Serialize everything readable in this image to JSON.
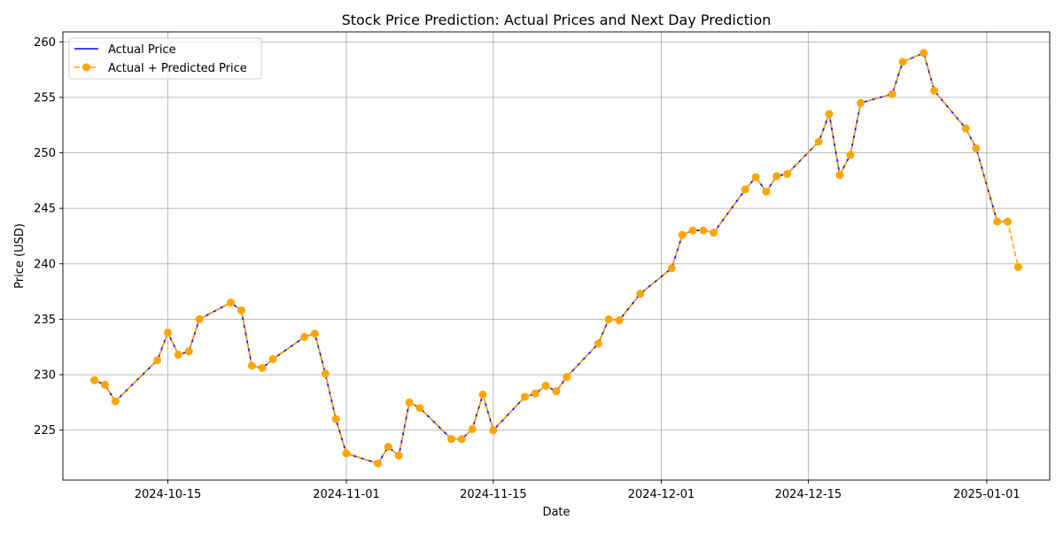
{
  "chart_data": {
    "type": "line",
    "title": "Stock Price Prediction: Actual Prices and Next Day Prediction",
    "xlabel": "Date",
    "ylabel": "Price (USD)",
    "xlim": [
      "2024-10-05",
      "2025-01-07"
    ],
    "ylim": [
      220.5,
      260.9
    ],
    "x_ticks": [
      "2024-10-15",
      "2024-11-01",
      "2024-11-15",
      "2024-12-01",
      "2024-12-15",
      "2025-01-01"
    ],
    "y_ticks": [
      225,
      230,
      235,
      240,
      245,
      250,
      255,
      260
    ],
    "grid": true,
    "legend_position": "top-left",
    "colors": {
      "actual": "#0000ff",
      "predicted": "#ffa500"
    },
    "series": [
      {
        "name": "Actual Price",
        "style": "solid",
        "x": [
          "2024-10-08",
          "2024-10-09",
          "2024-10-10",
          "2024-10-14",
          "2024-10-15",
          "2024-10-16",
          "2024-10-17",
          "2024-10-18",
          "2024-10-21",
          "2024-10-22",
          "2024-10-23",
          "2024-10-24",
          "2024-10-25",
          "2024-10-28",
          "2024-10-29",
          "2024-10-30",
          "2024-10-31",
          "2024-11-01",
          "2024-11-04",
          "2024-11-05",
          "2024-11-06",
          "2024-11-07",
          "2024-11-08",
          "2024-11-11",
          "2024-11-12",
          "2024-11-13",
          "2024-11-14",
          "2024-11-15",
          "2024-11-18",
          "2024-11-19",
          "2024-11-20",
          "2024-11-21",
          "2024-11-22",
          "2024-11-25",
          "2024-11-26",
          "2024-11-27",
          "2024-11-29",
          "2024-12-02",
          "2024-12-03",
          "2024-12-04",
          "2024-12-05",
          "2024-12-06",
          "2024-12-09",
          "2024-12-10",
          "2024-12-11",
          "2024-12-12",
          "2024-12-13",
          "2024-12-16",
          "2024-12-17",
          "2024-12-18",
          "2024-12-19",
          "2024-12-20",
          "2024-12-23",
          "2024-12-24",
          "2024-12-26",
          "2024-12-27",
          "2024-12-30",
          "2024-12-31",
          "2025-01-02",
          "2025-01-03"
        ],
        "values": [
          229.5,
          229.1,
          227.6,
          231.3,
          233.8,
          231.8,
          232.1,
          235.0,
          236.5,
          235.8,
          230.8,
          230.6,
          231.4,
          233.4,
          233.7,
          230.1,
          226.0,
          222.9,
          222.0,
          223.5,
          222.7,
          227.5,
          227.0,
          224.2,
          224.2,
          225.1,
          228.2,
          225.0,
          228.0,
          228.3,
          229.0,
          228.5,
          229.8,
          232.8,
          235.0,
          234.9,
          237.3,
          239.6,
          242.6,
          243.0,
          243.0,
          242.8,
          246.7,
          247.8,
          246.5,
          247.9,
          248.1,
          251.0,
          253.5,
          248.0,
          249.8,
          254.5,
          255.3,
          258.2,
          259.0,
          255.6,
          252.2,
          250.4,
          243.8,
          243.8
        ]
      },
      {
        "name": "Actual + Predicted Price",
        "style": "dashed-markers",
        "x": [
          "2024-10-08",
          "2024-10-09",
          "2024-10-10",
          "2024-10-14",
          "2024-10-15",
          "2024-10-16",
          "2024-10-17",
          "2024-10-18",
          "2024-10-21",
          "2024-10-22",
          "2024-10-23",
          "2024-10-24",
          "2024-10-25",
          "2024-10-28",
          "2024-10-29",
          "2024-10-30",
          "2024-10-31",
          "2024-11-01",
          "2024-11-04",
          "2024-11-05",
          "2024-11-06",
          "2024-11-07",
          "2024-11-08",
          "2024-11-11",
          "2024-11-12",
          "2024-11-13",
          "2024-11-14",
          "2024-11-15",
          "2024-11-18",
          "2024-11-19",
          "2024-11-20",
          "2024-11-21",
          "2024-11-22",
          "2024-11-25",
          "2024-11-26",
          "2024-11-27",
          "2024-11-29",
          "2024-12-02",
          "2024-12-03",
          "2024-12-04",
          "2024-12-05",
          "2024-12-06",
          "2024-12-09",
          "2024-12-10",
          "2024-12-11",
          "2024-12-12",
          "2024-12-13",
          "2024-12-16",
          "2024-12-17",
          "2024-12-18",
          "2024-12-19",
          "2024-12-20",
          "2024-12-23",
          "2024-12-24",
          "2024-12-26",
          "2024-12-27",
          "2024-12-30",
          "2024-12-31",
          "2025-01-02",
          "2025-01-03",
          "2025-01-04"
        ],
        "values": [
          229.5,
          229.1,
          227.6,
          231.3,
          233.8,
          231.8,
          232.1,
          235.0,
          236.5,
          235.8,
          230.8,
          230.6,
          231.4,
          233.4,
          233.7,
          230.1,
          226.0,
          222.9,
          222.0,
          223.5,
          222.7,
          227.5,
          227.0,
          224.2,
          224.2,
          225.1,
          228.2,
          225.0,
          228.0,
          228.3,
          229.0,
          228.5,
          229.8,
          232.8,
          235.0,
          234.9,
          237.3,
          239.6,
          242.6,
          243.0,
          243.0,
          242.8,
          246.7,
          247.8,
          246.5,
          247.9,
          248.1,
          251.0,
          253.5,
          248.0,
          249.8,
          254.5,
          255.3,
          258.2,
          259.0,
          255.6,
          252.2,
          250.4,
          243.8,
          243.8,
          239.7
        ]
      }
    ]
  }
}
